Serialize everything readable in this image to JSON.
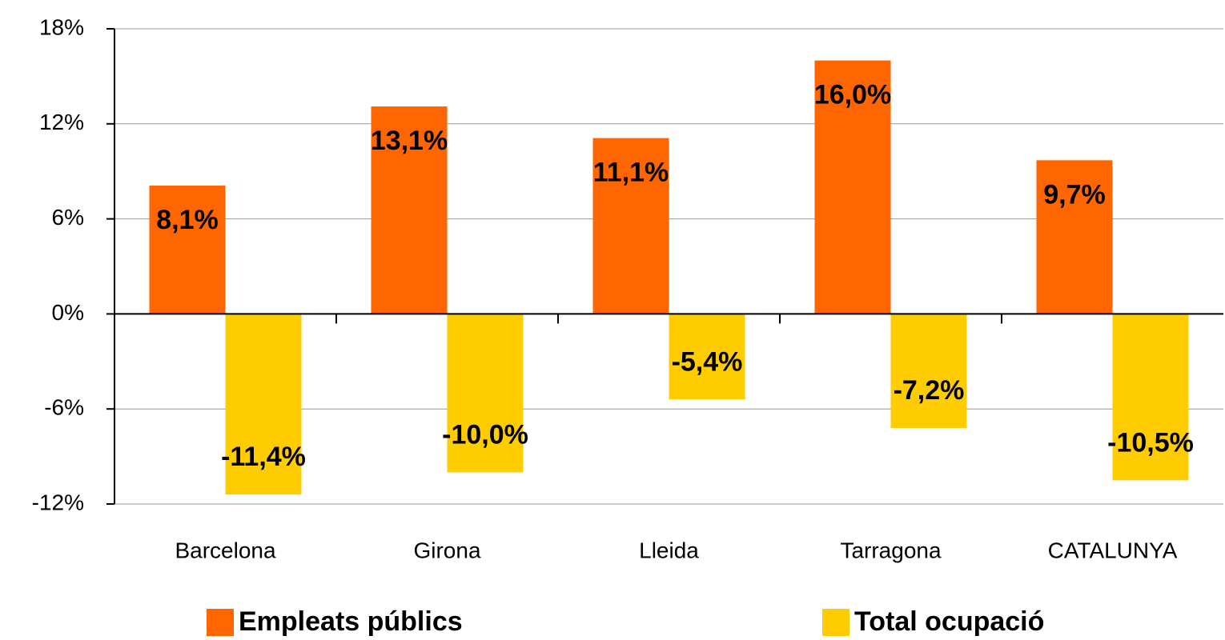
{
  "chart_data": {
    "type": "bar",
    "categories": [
      "Barcelona",
      "Girona",
      "Lleida",
      "Tarragona",
      "CATALUNYA"
    ],
    "series": [
      {
        "name": "Empleats públics",
        "color": "#ff6600",
        "values": [
          8.1,
          13.1,
          11.1,
          16.0,
          9.7
        ],
        "value_labels": [
          "8,1%",
          "13,1%",
          "11,1%",
          "16,0%",
          "9,7%"
        ]
      },
      {
        "name": "Total ocupació",
        "color": "#ffcc00",
        "values": [
          -11.4,
          -10.0,
          -5.4,
          -7.2,
          -10.5
        ],
        "value_labels": [
          "-11,4%",
          "-10,0%",
          "-5,4%",
          "-7,2%",
          "-10,5%"
        ]
      }
    ],
    "ylim": [
      -12,
      18
    ],
    "yticks": [
      {
        "value": -12,
        "label": "-12%"
      },
      {
        "value": -6,
        "label": "-6%"
      },
      {
        "value": 0,
        "label": "0%"
      },
      {
        "value": 6,
        "label": "6%"
      },
      {
        "value": 12,
        "label": "12%"
      },
      {
        "value": 18,
        "label": "18%"
      }
    ],
    "grid": true,
    "legend": "bottom"
  }
}
